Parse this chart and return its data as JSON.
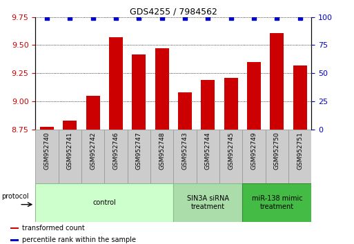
{
  "title": "GDS4255 / 7984562",
  "samples": [
    "GSM952740",
    "GSM952741",
    "GSM952742",
    "GSM952746",
    "GSM952747",
    "GSM952748",
    "GSM952743",
    "GSM952744",
    "GSM952745",
    "GSM952749",
    "GSM952750",
    "GSM952751"
  ],
  "transformed_count": [
    8.77,
    8.83,
    9.05,
    9.57,
    9.42,
    9.47,
    9.08,
    9.19,
    9.21,
    9.35,
    9.61,
    9.32
  ],
  "percentile_rank": [
    99,
    99,
    99,
    99,
    99,
    99,
    99,
    99,
    99,
    99,
    99,
    99
  ],
  "ylim_left": [
    8.75,
    9.75
  ],
  "ylim_right": [
    0,
    100
  ],
  "yticks_left": [
    8.75,
    9.0,
    9.25,
    9.5,
    9.75
  ],
  "yticks_right": [
    0,
    25,
    50,
    75,
    100
  ],
  "bar_color": "#cc0000",
  "dot_color": "#0000cc",
  "groups": [
    {
      "label": "control",
      "start": 0,
      "end": 6,
      "color": "#ccffcc",
      "border": "#88bb88"
    },
    {
      "label": "SIN3A siRNA\ntreatment",
      "start": 6,
      "end": 9,
      "color": "#aaddaa",
      "border": "#88bb88"
    },
    {
      "label": "miR-138 mimic\ntreatment",
      "start": 9,
      "end": 12,
      "color": "#44bb44",
      "border": "#338833"
    }
  ],
  "protocol_label": "protocol",
  "legend_items": [
    {
      "label": "transformed count",
      "color": "#cc0000"
    },
    {
      "label": "percentile rank within the sample",
      "color": "#0000cc"
    }
  ],
  "background_color": "#ffffff",
  "grid_color": "#000000",
  "tick_color_left": "#cc0000",
  "tick_color_right": "#0000cc",
  "sample_box_color": "#cccccc",
  "sample_box_edge": "#999999"
}
